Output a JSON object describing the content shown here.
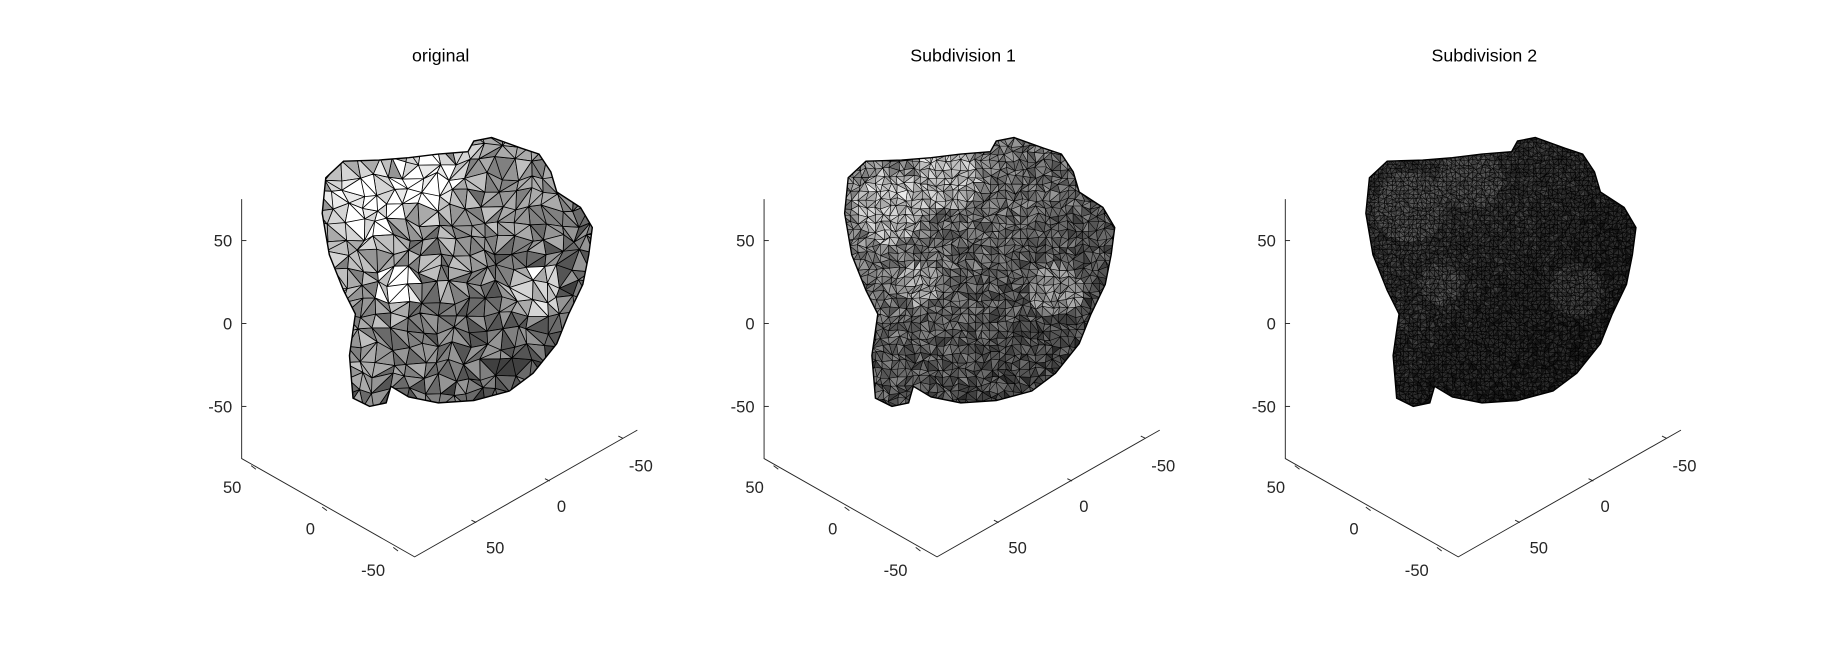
{
  "chart_data": [
    {
      "type": "3d-mesh",
      "title": "original",
      "zticks": [
        "50",
        "0",
        "-50"
      ],
      "xticks": [
        "50",
        "0",
        "-50"
      ],
      "yticks": [
        "50",
        "0",
        "-50"
      ],
      "face_color": "#8c8c8c",
      "edge_color": "#000000",
      "grid": false
    },
    {
      "type": "3d-mesh",
      "title": "Subdivision 1",
      "zticks": [
        "50",
        "0",
        "-50"
      ],
      "xticks": [
        "50",
        "0",
        "-50"
      ],
      "yticks": [
        "50",
        "0",
        "-50"
      ],
      "face_color": "#8c8c8c",
      "edge_color": "#000000",
      "grid": false
    },
    {
      "type": "3d-mesh",
      "title": "Subdivision 2",
      "zticks": [
        "50",
        "0",
        "-50"
      ],
      "xticks": [
        "50",
        "0",
        "-50"
      ],
      "yticks": [
        "50",
        "0",
        "-50"
      ],
      "face_color": "#8c8c8c",
      "edge_color": "#000000",
      "grid": false
    }
  ]
}
